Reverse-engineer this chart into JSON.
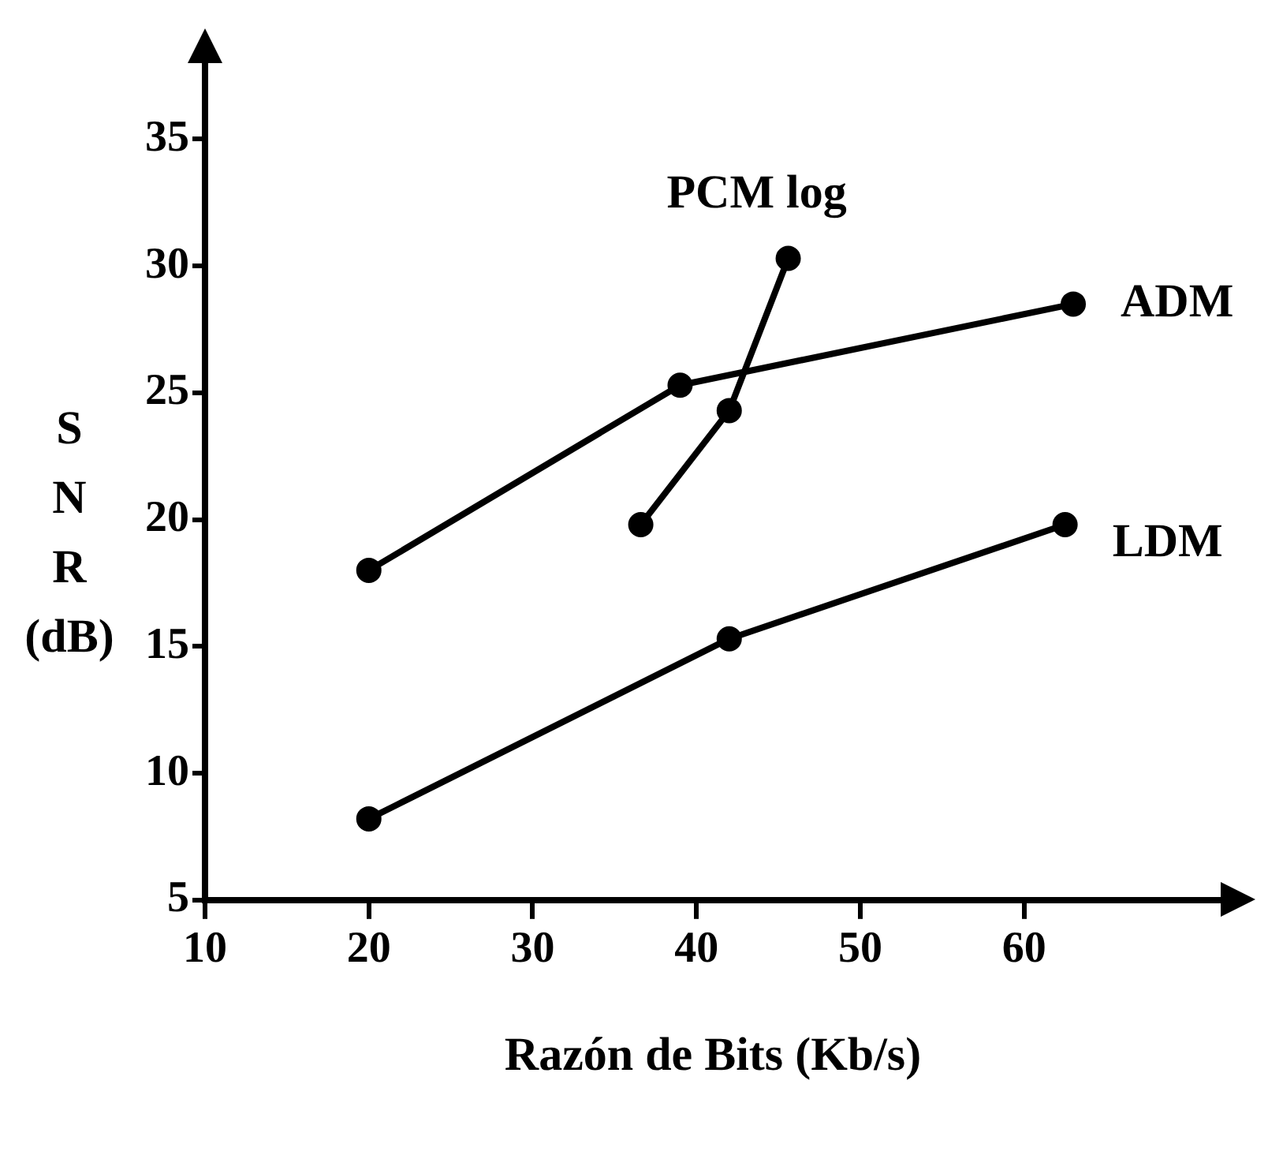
{
  "chart_data": {
    "type": "line",
    "xlabel": "Razón de Bits (Kb/s)",
    "ylabel": "S N R (dB)",
    "xlim": [
      10,
      72
    ],
    "xticks": [
      10,
      20,
      30,
      40,
      50,
      60
    ],
    "ylim": [
      5,
      38
    ],
    "yticks": [
      5,
      10,
      15,
      20,
      25,
      30,
      35
    ],
    "grid": false,
    "legend": false,
    "marker": "circle",
    "line_style": "solid",
    "series": [
      {
        "name": "ADM",
        "color": "#000000",
        "x": [
          20,
          39,
          63
        ],
        "values": [
          18,
          25.3,
          28.5
        ]
      },
      {
        "name": "LDM",
        "color": "#000000",
        "x": [
          20,
          42,
          62.5
        ],
        "values": [
          8.2,
          15.3,
          19.8
        ]
      },
      {
        "name": "PCM log",
        "color": "#000000",
        "x": [
          36.6,
          42,
          45.6
        ],
        "values": [
          19.8,
          24.3,
          30.3
        ]
      }
    ]
  }
}
